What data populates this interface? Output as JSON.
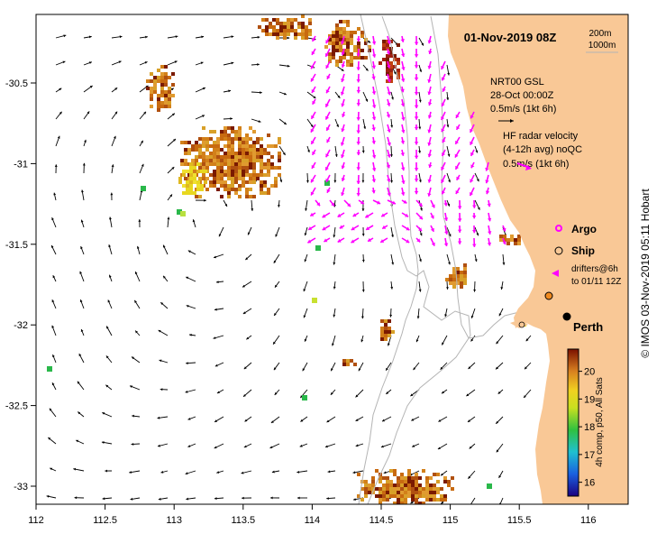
{
  "title": "01-Nov-2019 08Z",
  "bathy_legend": [
    "200m",
    "1000m"
  ],
  "model_label": {
    "line1": "NRT00 GSL",
    "line2": "28-Oct 00:00Z",
    "scale": "0.5m/s (1kt 6h)"
  },
  "radar_label": {
    "line1": "HF radar velocity",
    "line2": "(4-12h avg) noQC",
    "scale": "0.5m/s (1kt 6h)"
  },
  "legend": {
    "argo": "Argo",
    "ship": "Ship",
    "drifters_line1": "drifters@6h",
    "drifters_line2": "to 01/11 12Z"
  },
  "place_label": "Perth",
  "colorbar": {
    "label": "4h comp, p50, All Sats",
    "ticks": [
      "16",
      "17",
      "18",
      "19",
      "20"
    ],
    "min": 15.5,
    "max": 20.8
  },
  "credit": "© IMOS 03-Nov-2019 05:11 Hobart",
  "axes": {
    "x_ticks": [
      "112",
      "112.5",
      "113",
      "113.5",
      "114",
      "114.5",
      "115",
      "115.5",
      "116"
    ],
    "y_ticks": [
      "-30.5",
      "-31",
      "-31.5",
      "-32",
      "-32.5",
      "-33"
    ],
    "lon_range": [
      112,
      116.3
    ],
    "lat_range": [
      -33.1,
      -30.1
    ]
  },
  "colors": {
    "land": "#f9c896",
    "radar_arrow": "#ff00ff",
    "sst_warm": "#d2801a",
    "sst_hot": "#7a1a00",
    "sst_mid": "#e8d820",
    "sst_cool": "#2ab84a",
    "contour": "#b4b4b4"
  }
}
